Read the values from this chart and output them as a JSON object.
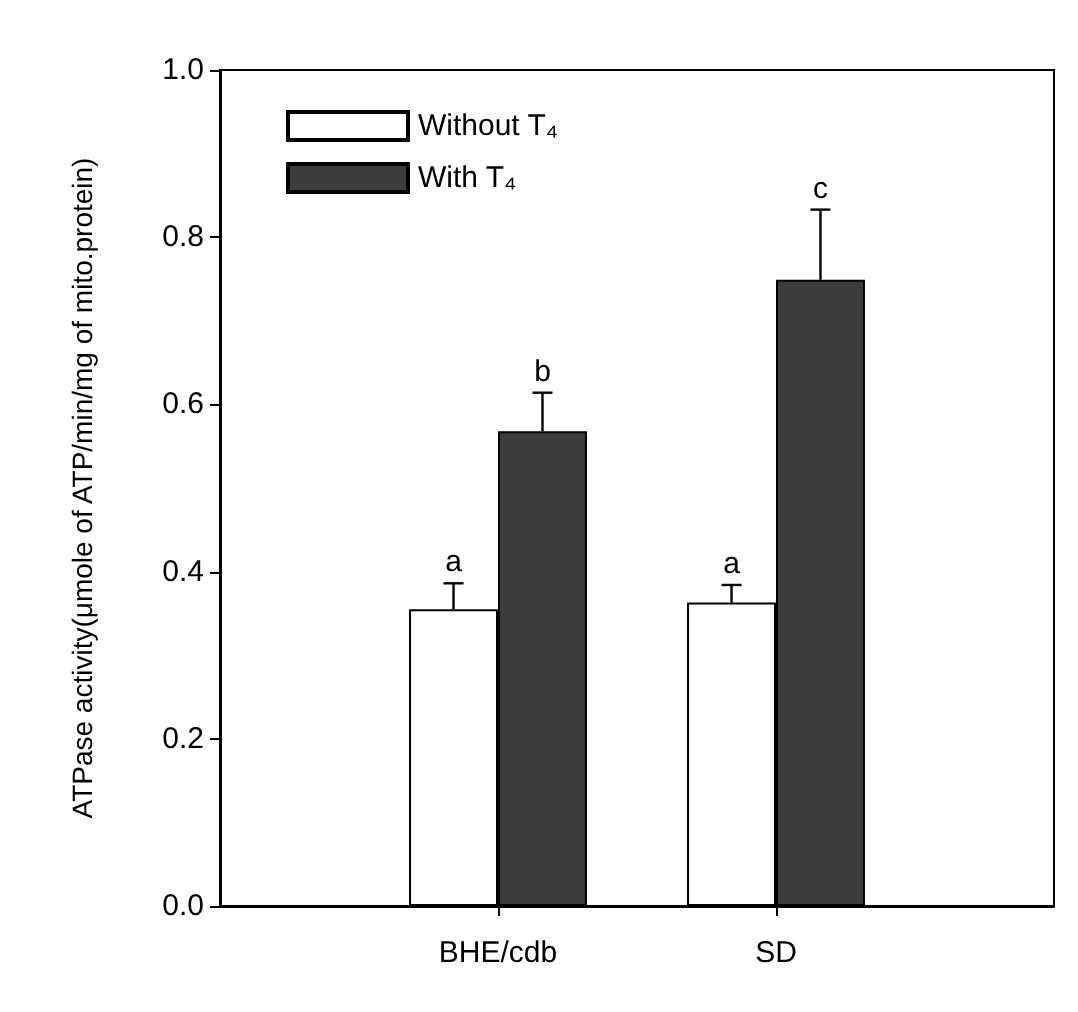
{
  "chart_data": {
    "type": "bar",
    "ylabel": "ATPase activity(μmole of ATP/min/mg of mito.protein)",
    "categories": [
      null,
      "BHE/cdb",
      "SD",
      null
    ],
    "series": [
      {
        "name": "Without T₄",
        "color": "#ffffff",
        "values": [
          null,
          0.355,
          0.363,
          null
        ],
        "errors": [
          null,
          [
            0.355,
            0.386
          ],
          [
            0.363,
            0.384
          ],
          null
        ],
        "value_labels": [
          null,
          "a",
          "a",
          null
        ]
      },
      {
        "name": "With T₄",
        "color": "#3c3c3c",
        "values": [
          null,
          0.568,
          0.749,
          null
        ],
        "errors": [
          null,
          [
            0.568,
            0.614
          ],
          [
            0.749,
            0.833
          ],
          null
        ],
        "value_labels": [
          null,
          "b",
          "c",
          null
        ]
      }
    ],
    "ylim": [
      0,
      1
    ],
    "yticks": [
      {
        "value": 0,
        "label": "0.0"
      },
      {
        "value": 0.2,
        "label": "0.2"
      },
      {
        "value": 0.4,
        "label": "0.4"
      },
      {
        "value": 0.6,
        "label": "0.6"
      },
      {
        "value": 0.8,
        "label": "0.8"
      },
      {
        "value": 1,
        "label": "1.0"
      }
    ],
    "legend": "top left",
    "grid": false
  }
}
